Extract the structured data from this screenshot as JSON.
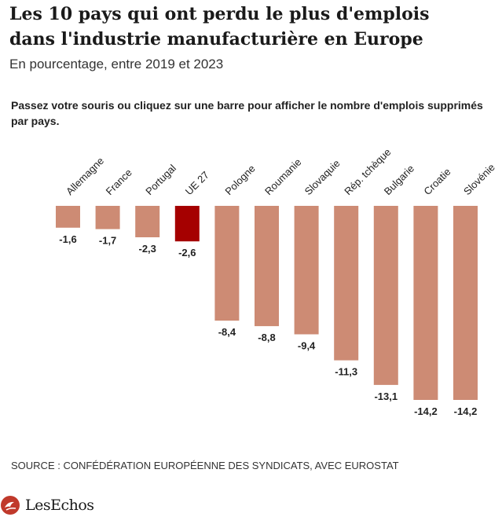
{
  "header": {
    "title": "Les 10 pays qui ont perdu le plus d'emplois dans l'industrie manufacturière en Europe",
    "subtitle": "En pourcentage, entre 2019 et 2023",
    "instruction": "Passez votre souris ou cliquez sur une barre pour afficher le nombre d'emplois supprimés par pays."
  },
  "chart_data": {
    "type": "bar",
    "categories": [
      "Allemagne",
      "France",
      "Portugal",
      "UE 27",
      "Pologne",
      "Roumanie",
      "Slovaquie",
      "Rép. tchèque",
      "Bulgarie",
      "Croatie",
      "Slovénie"
    ],
    "values": [
      -1.6,
      -1.7,
      -2.3,
      -2.6,
      -8.4,
      -8.8,
      -9.4,
      -11.3,
      -13.1,
      -14.2,
      -14.2
    ],
    "value_labels": [
      "-1,6",
      "-1,7",
      "-2,3",
      "-2,6",
      "-8,4",
      "-8,8",
      "-9,4",
      "-11,3",
      "-13,1",
      "-14,2",
      "-14,2"
    ],
    "highlight_index": 3,
    "colors": {
      "default": "#cd8b74",
      "highlight": "#a50000"
    },
    "ylim": [
      -14.2,
      0
    ],
    "grid": false
  },
  "footer": {
    "source": "SOURCE : CONFÉDÉRATION EUROPÉENNE DES SYNDICATS, AVEC EUROSTAT",
    "logo_text": "LesEchos",
    "logo_color": "#c0392b"
  }
}
